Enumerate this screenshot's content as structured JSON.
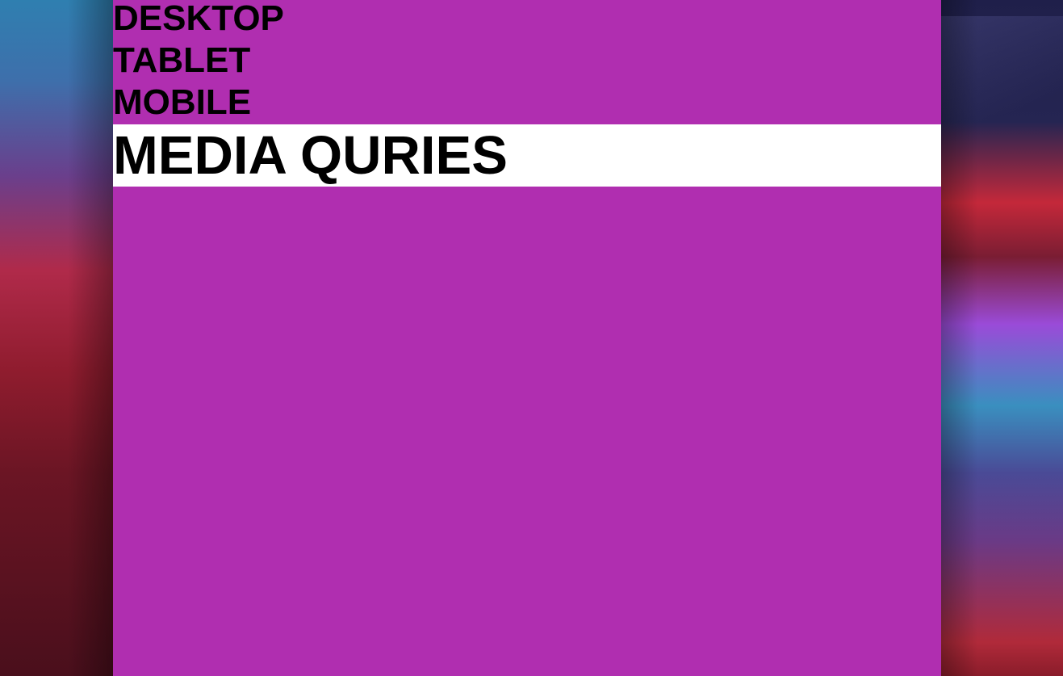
{
  "nav": {
    "items": [
      "DESKTOP",
      "TABLET",
      "MOBILE"
    ]
  },
  "banner": {
    "title": "MEDIA QURIES"
  },
  "colors": {
    "page_background": "#b02eb0",
    "banner_background": "#ffffff",
    "text": "#000000"
  }
}
